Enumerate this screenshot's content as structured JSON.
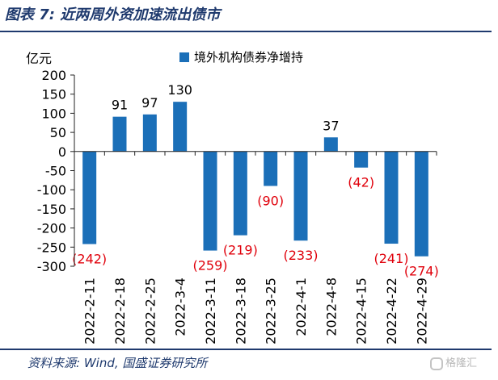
{
  "header": {
    "title": "图表 7:  近两周外资加速流出债市"
  },
  "footer": {
    "source": "资料来源:  Wind,  国盛证券研究所",
    "watermark": "格隆汇"
  },
  "colors": {
    "bar": "#1b6fb8",
    "label_positive": "#000000",
    "label_negative": "#e0000b",
    "title": "#1f3a6e"
  },
  "chart_data": {
    "type": "bar",
    "title": "",
    "ylabel": "亿元",
    "xlabel": "",
    "legend": "境外机构债券净增持",
    "legend_position": "top-center",
    "ylim": [
      -300,
      200
    ],
    "yticks": [
      200,
      150,
      100,
      50,
      0,
      -50,
      -100,
      -150,
      -200,
      -250,
      -300
    ],
    "categories": [
      "2022-2-11",
      "2022-2-18",
      "2022-2-25",
      "2022-3-4",
      "2022-3-11",
      "2022-3-18",
      "2022-3-25",
      "2022-4-1",
      "2022-4-8",
      "2022-4-15",
      "2022-4-22",
      "2022-4-29"
    ],
    "values": [
      -242,
      91,
      97,
      130,
      -259,
      -219,
      -90,
      -233,
      37,
      -42,
      -241,
      -274
    ],
    "data_labels": [
      "(242)",
      "91",
      "97",
      "130",
      "(259)",
      "(219)",
      "(90)",
      "(233)",
      "37",
      "(42)",
      "(241)",
      "(274)"
    ]
  }
}
